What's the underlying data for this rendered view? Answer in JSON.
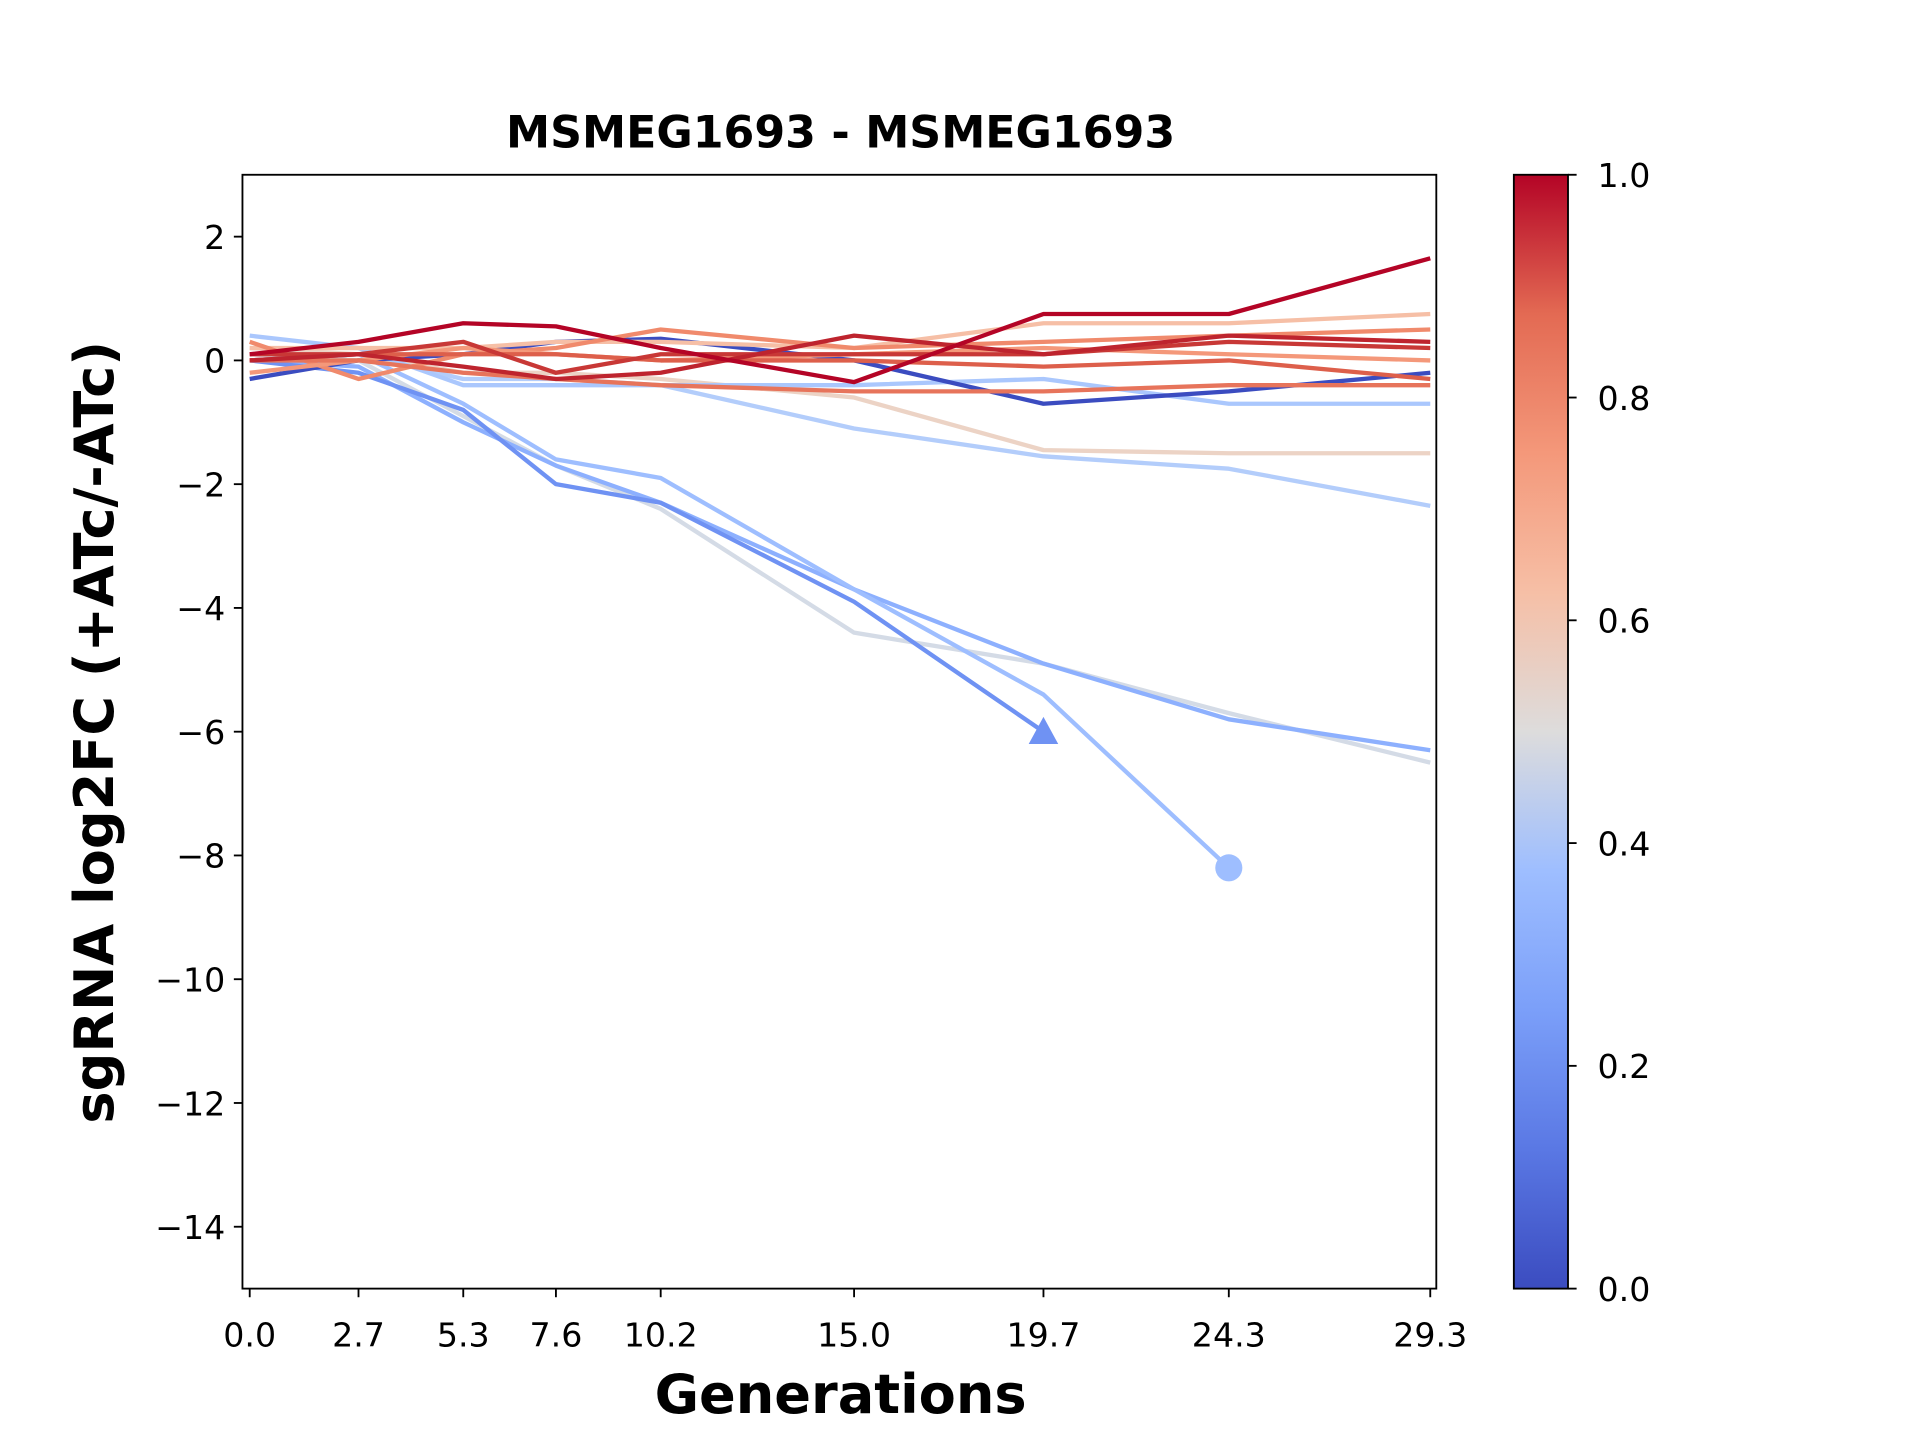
{
  "chart_data": {
    "type": "line",
    "title": "MSMEG1693 - MSMEG1693",
    "x_label": "Generations",
    "y_label": "sgRNA log2FC (+ATc/-ATc)",
    "x": [
      0,
      2.7,
      5.3,
      7.6,
      10.2,
      15.0,
      19.7,
      24.3,
      29.3
    ],
    "xlim": [
      -0.18,
      29.45
    ],
    "xticks": [
      {
        "value": 0,
        "label": "0.0"
      },
      2.7,
      5.3,
      7.6,
      10.2,
      {
        "value": 15.0,
        "label": "15.0"
      },
      19.7,
      24.3,
      29.3
    ],
    "ylim": [
      -15,
      3
    ],
    "yticks": [
      {
        "value": -14,
        "label": "−14"
      },
      {
        "value": -12,
        "label": "−12"
      },
      {
        "value": -10,
        "label": "−10"
      },
      {
        "value": -8,
        "label": "−8"
      },
      {
        "value": -6,
        "label": "−6"
      },
      {
        "value": -4,
        "label": "−4"
      },
      {
        "value": -2,
        "label": "−2"
      },
      0,
      2
    ],
    "colorbar": {
      "lim": [
        0,
        1
      ],
      "ticks": [
        {
          "value": 0,
          "label": "0.0"
        },
        {
          "value": 0.2,
          "label": "0.2"
        },
        {
          "value": 0.4,
          "label": "0.4"
        },
        {
          "value": 0.6,
          "label": "0.6"
        },
        {
          "value": 0.8,
          "label": "0.8"
        },
        {
          "value": 1,
          "label": "1.0"
        }
      ]
    },
    "series": [
      {
        "color": "#d4dbe6",
        "values": [
          0.1,
          0,
          -0.9,
          -1.7,
          -2.4,
          -4.4,
          -4.9,
          -5.7,
          -6.5
        ]
      },
      {
        "color": "#8db0fe",
        "values": [
          0,
          -0.1,
          -1.0,
          -1.7,
          -2.3,
          -3.7,
          -4.9,
          -5.8,
          -6.3
        ]
      },
      {
        "color": "#9ebeff",
        "marker": "circle",
        "values": [
          0,
          0.1,
          -0.7,
          -1.6,
          -1.9,
          -3.7,
          -5.4,
          -8.2,
          null
        ]
      },
      {
        "color": "#6f92f3",
        "marker": "triangle",
        "values": [
          0,
          -0.2,
          -0.8,
          -2.0,
          -2.3,
          -3.9,
          -6.0,
          null,
          null
        ]
      },
      {
        "color": "#b3cdfb",
        "values": [
          0,
          0.1,
          -0.3,
          -0.3,
          -0.4,
          -1.1,
          -1.55,
          -1.75,
          -2.35
        ]
      },
      {
        "color": "#ecd3c5",
        "values": [
          0.2,
          0.1,
          -0.2,
          -0.2,
          -0.3,
          -0.6,
          -1.45,
          -1.5,
          -1.5
        ]
      },
      {
        "color": "#aac7fd",
        "values": [
          0.4,
          0.2,
          -0.4,
          -0.4,
          -0.4,
          -0.4,
          -0.3,
          -0.7,
          -0.7
        ]
      },
      {
        "color": "#3b4cc0",
        "values": [
          -0.3,
          0,
          0.1,
          0.3,
          0.35,
          0,
          -0.7,
          -0.5,
          -0.2
        ]
      },
      {
        "color": "#f6bfa6",
        "values": [
          0.2,
          0.2,
          0.2,
          0.3,
          0.3,
          0.2,
          0.6,
          0.6,
          0.75
        ]
      },
      {
        "color": "#f08a6c",
        "values": [
          0.3,
          -0.3,
          0.1,
          0.2,
          0.5,
          0.2,
          0.3,
          0.4,
          0.5
        ]
      },
      {
        "color": "#f4987a",
        "values": [
          -0.2,
          0,
          0.2,
          0.1,
          0,
          0.1,
          0.2,
          0.1,
          0.0
        ]
      },
      {
        "color": "#e7745b",
        "values": [
          0,
          0,
          -0.2,
          -0.3,
          -0.4,
          -0.5,
          -0.5,
          -0.4,
          -0.4
        ]
      },
      {
        "color": "#dd5f4b",
        "values": [
          0,
          0.1,
          0.1,
          0.1,
          0,
          0,
          -0.1,
          0,
          -0.3
        ]
      },
      {
        "color": "#c83836",
        "values": [
          0.1,
          0.1,
          0.3,
          -0.2,
          0.1,
          0.1,
          0.1,
          0.3,
          0.2
        ]
      },
      {
        "color": "#be242e",
        "values": [
          0,
          0.1,
          -0.1,
          -0.3,
          -0.2,
          0.4,
          0.1,
          0.4,
          0.3
        ]
      },
      {
        "color": "#b40426",
        "values": [
          0.1,
          0.3,
          0.6,
          0.55,
          0.2,
          -0.35,
          0.75,
          0.75,
          1.65
        ]
      }
    ]
  }
}
